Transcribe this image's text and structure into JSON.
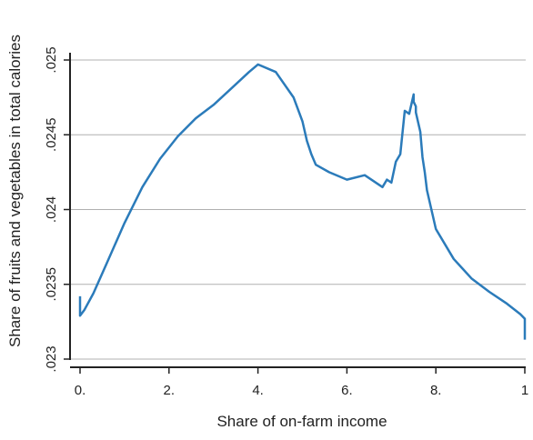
{
  "chart_data": {
    "type": "line",
    "title": "",
    "xlabel": "Share of on-farm income",
    "ylabel": "Share of fruits and vegetables in total calories",
    "xlim": [
      0,
      1
    ],
    "ylim": [
      0.023,
      0.025
    ],
    "xticks": [
      0,
      0.2,
      0.4,
      0.6,
      0.8,
      1
    ],
    "xtick_labels": [
      "0.",
      "2.",
      "4.",
      "6.",
      "8.",
      "1"
    ],
    "yticks": [
      0.023,
      0.0235,
      0.024,
      0.0245,
      0.025
    ],
    "ytick_labels": [
      ".023",
      ".0235",
      ".024",
      ".0245",
      ".025"
    ],
    "grid": "horizontal",
    "legend": "none",
    "line_color": "#2b7bba",
    "grid_color": "#b0b0b0",
    "series": [
      {
        "x": [
          0.0,
          0.0,
          0.01,
          0.03,
          0.06,
          0.1,
          0.14,
          0.18,
          0.22,
          0.26,
          0.3,
          0.34,
          0.38,
          0.4,
          0.44,
          0.48,
          0.5,
          0.51,
          0.52,
          0.53,
          0.56,
          0.6,
          0.64,
          0.68,
          0.69,
          0.7,
          0.71,
          0.72,
          0.73,
          0.74,
          0.75,
          0.75,
          0.755,
          0.755,
          0.765,
          0.77,
          0.775,
          0.78,
          0.79,
          0.8,
          0.84,
          0.88,
          0.92,
          0.96,
          0.99,
          1.0,
          1.0
        ],
        "y": [
          0.02342,
          0.02329,
          0.02333,
          0.02344,
          0.02364,
          0.02391,
          0.02415,
          0.02434,
          0.02449,
          0.02461,
          0.0247,
          0.02481,
          0.02492,
          0.02497,
          0.02492,
          0.02475,
          0.02459,
          0.02446,
          0.02437,
          0.0243,
          0.02425,
          0.0242,
          0.02423,
          0.02415,
          0.0242,
          0.02418,
          0.02432,
          0.02437,
          0.02466,
          0.02464,
          0.02477,
          0.02472,
          0.02469,
          0.02465,
          0.02452,
          0.02435,
          0.02425,
          0.02413,
          0.024,
          0.02387,
          0.02367,
          0.02354,
          0.02345,
          0.02337,
          0.0233,
          0.02327,
          0.02313
        ]
      }
    ]
  }
}
